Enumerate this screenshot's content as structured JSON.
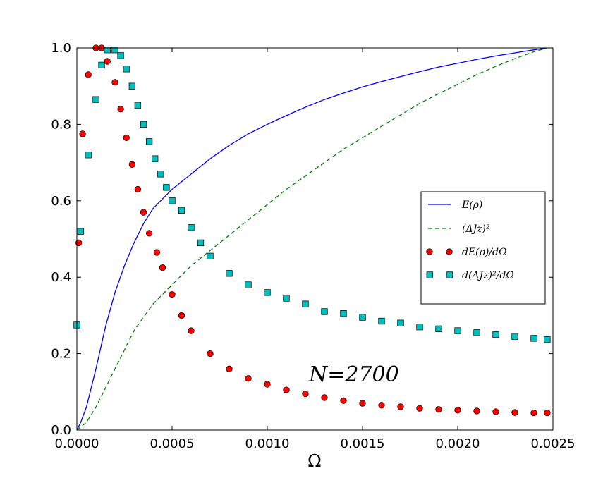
{
  "chart_data": {
    "type": "line",
    "title": "",
    "xlabel": "Ω",
    "ylabel": "",
    "xlim": [
      0.0,
      0.0025
    ],
    "ylim": [
      0.0,
      1.0
    ],
    "grid": false,
    "x_ticks": [
      "0.0000",
      "0.0005",
      "0.0010",
      "0.0015",
      "0.0020",
      "0.0025"
    ],
    "y_ticks": [
      "0.0",
      "0.2",
      "0.4",
      "0.6",
      "0.8",
      "1.0"
    ],
    "annotation": "N=2700",
    "legend_position": "center-right",
    "series": [
      {
        "name": "E(ρ)",
        "style": "solid-line",
        "color": "#0000ff",
        "x": [
          0.0,
          2e-05,
          5e-05,
          0.0001,
          0.00015,
          0.0002,
          0.00025,
          0.0003,
          0.00035,
          0.0004,
          0.00045,
          0.0005,
          0.0006,
          0.0007,
          0.0008,
          0.0009,
          0.001,
          0.0011,
          0.0012,
          0.0013,
          0.0014,
          0.0015,
          0.0016,
          0.0017,
          0.0018,
          0.0019,
          0.002,
          0.0021,
          0.0022,
          0.0023,
          0.0024,
          0.00247
        ],
        "y": [
          0.0,
          0.02,
          0.06,
          0.16,
          0.27,
          0.36,
          0.43,
          0.49,
          0.54,
          0.58,
          0.605,
          0.63,
          0.67,
          0.71,
          0.745,
          0.775,
          0.8,
          0.823,
          0.845,
          0.865,
          0.882,
          0.898,
          0.912,
          0.925,
          0.938,
          0.95,
          0.96,
          0.97,
          0.979,
          0.987,
          0.995,
          1.0
        ]
      },
      {
        "name": "(ΔJz)²",
        "style": "dashed-line",
        "color": "#008000",
        "x": [
          0.0,
          5e-05,
          0.0001,
          0.00015,
          0.0002,
          0.0003,
          0.0004,
          0.0005,
          0.0006,
          0.0007,
          0.0008,
          0.0009,
          0.001,
          0.0011,
          0.0012,
          0.0013,
          0.0014,
          0.0015,
          0.0016,
          0.0017,
          0.0018,
          0.0019,
          0.002,
          0.0021,
          0.0022,
          0.0023,
          0.0024,
          0.00247
        ],
        "y": [
          0.0,
          0.02,
          0.06,
          0.11,
          0.16,
          0.26,
          0.33,
          0.38,
          0.43,
          0.47,
          0.51,
          0.55,
          0.59,
          0.63,
          0.665,
          0.7,
          0.735,
          0.765,
          0.795,
          0.825,
          0.855,
          0.88,
          0.905,
          0.93,
          0.952,
          0.972,
          0.99,
          1.0
        ]
      },
      {
        "name": "dE(ρ)/dΩ",
        "style": "circle-markers",
        "color": "#ff0000",
        "x": [
          1e-05,
          3e-05,
          6e-05,
          0.0001,
          0.00013,
          0.00016,
          0.0002,
          0.00023,
          0.00026,
          0.00029,
          0.00032,
          0.00035,
          0.00038,
          0.00042,
          0.00045,
          0.0005,
          0.00055,
          0.0006,
          0.0007,
          0.0008,
          0.0009,
          0.001,
          0.0011,
          0.0012,
          0.0013,
          0.0014,
          0.0015,
          0.0016,
          0.0017,
          0.0018,
          0.0019,
          0.002,
          0.0021,
          0.0022,
          0.0023,
          0.0024,
          0.00247
        ],
        "y": [
          0.49,
          0.775,
          0.93,
          1.0,
          1.0,
          0.965,
          0.91,
          0.84,
          0.765,
          0.695,
          0.63,
          0.57,
          0.515,
          0.465,
          0.425,
          0.355,
          0.3,
          0.26,
          0.2,
          0.16,
          0.135,
          0.12,
          0.105,
          0.095,
          0.085,
          0.077,
          0.07,
          0.065,
          0.061,
          0.057,
          0.054,
          0.052,
          0.05,
          0.048,
          0.046,
          0.045,
          0.045
        ]
      },
      {
        "name": "d(ΔJz)²/dΩ",
        "style": "square-markers",
        "color": "#00bfbf",
        "x": [
          0.0,
          2e-05,
          6e-05,
          0.0001,
          0.00013,
          0.00016,
          0.0002,
          0.00023,
          0.00026,
          0.00029,
          0.00032,
          0.00035,
          0.00038,
          0.00041,
          0.00044,
          0.00047,
          0.0005,
          0.00055,
          0.0006,
          0.00065,
          0.0007,
          0.0008,
          0.0009,
          0.001,
          0.0011,
          0.0012,
          0.0013,
          0.0014,
          0.0015,
          0.0016,
          0.0017,
          0.0018,
          0.0019,
          0.002,
          0.0021,
          0.0022,
          0.0023,
          0.0024,
          0.00247
        ],
        "y": [
          0.275,
          0.52,
          0.72,
          0.865,
          0.955,
          0.995,
          0.995,
          0.98,
          0.945,
          0.9,
          0.85,
          0.8,
          0.755,
          0.71,
          0.67,
          0.635,
          0.6,
          0.575,
          0.53,
          0.49,
          0.455,
          0.41,
          0.38,
          0.36,
          0.345,
          0.33,
          0.31,
          0.305,
          0.295,
          0.285,
          0.28,
          0.27,
          0.265,
          0.26,
          0.255,
          0.25,
          0.245,
          0.24,
          0.237
        ]
      }
    ]
  }
}
